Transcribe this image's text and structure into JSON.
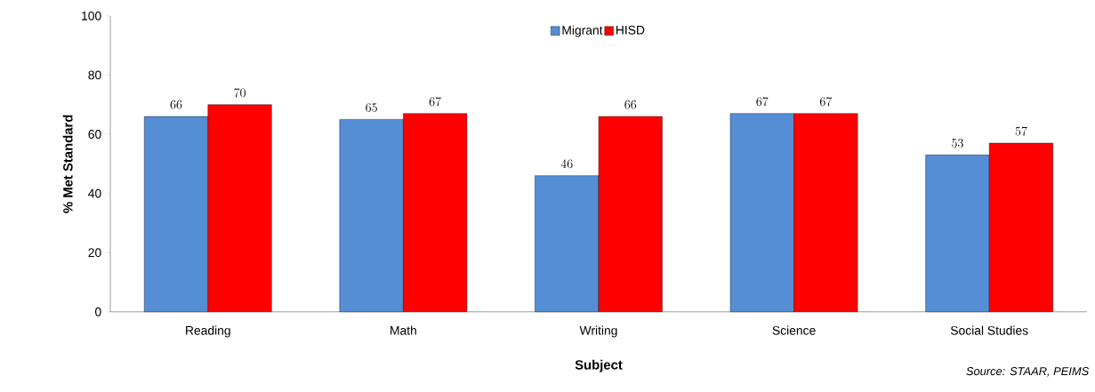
{
  "chart_data": {
    "type": "bar",
    "xlabel": "Subject",
    "ylabel": "% Met Standard",
    "categories": [
      "Reading",
      "Math",
      "Writing",
      "Science",
      "Social Studies"
    ],
    "series": [
      {
        "name": "Migrant",
        "color": "#558ed5",
        "values": [
          66,
          65,
          46,
          67,
          53
        ]
      },
      {
        "name": "HISD",
        "color": "#ff0000",
        "values": [
          70,
          67,
          66,
          67,
          57
        ]
      }
    ],
    "ylim": [
      0,
      100
    ],
    "yticks": [
      0,
      20,
      40,
      60,
      80,
      100
    ],
    "data_labels": true,
    "legend": "top",
    "grid": false,
    "annotations": [
      "Source: STAAR, PEIMS"
    ]
  }
}
